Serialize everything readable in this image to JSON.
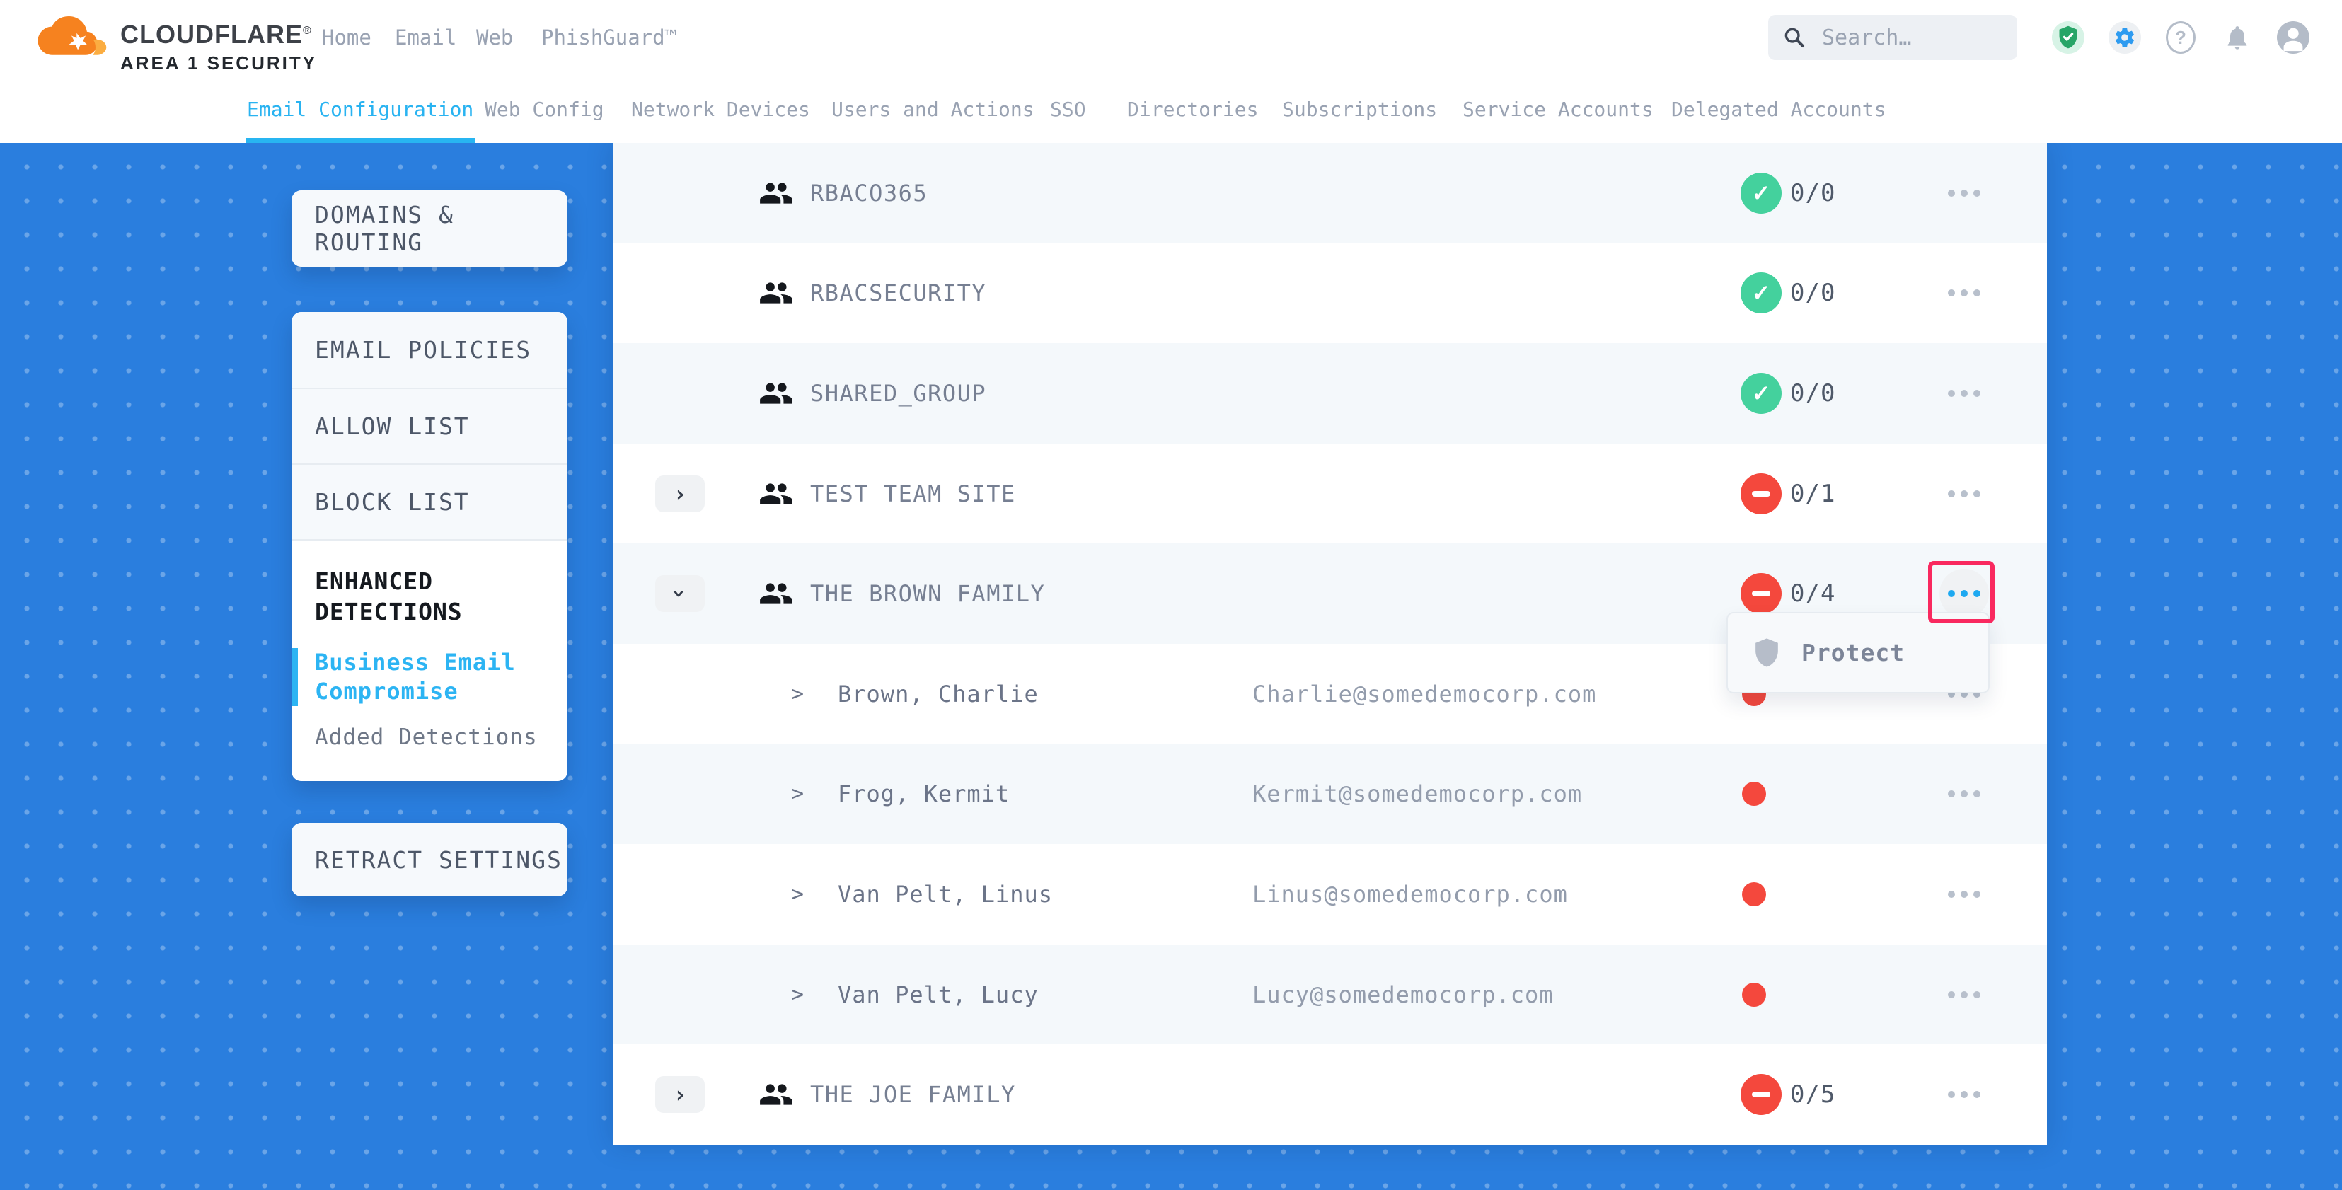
{
  "brand": {
    "name": "CLOUDFLARE",
    "registered_mark": "®",
    "subtitle": "AREA 1 SECURITY"
  },
  "top_nav": {
    "items": [
      "Home",
      "Email",
      "Web",
      "PhishGuard™"
    ]
  },
  "search": {
    "placeholder": "Search…"
  },
  "top_icons": [
    "shield-check-icon",
    "gear-icon",
    "help-icon",
    "bell-icon",
    "avatar-icon"
  ],
  "tabs": [
    {
      "label": "Email Configuration",
      "active": true
    },
    {
      "label": "Web Config",
      "active": false
    },
    {
      "label": "Network Devices",
      "active": false
    },
    {
      "label": "Users and Actions",
      "active": false
    },
    {
      "label": "SSO",
      "active": false
    },
    {
      "label": "Directories",
      "active": false
    },
    {
      "label": "Subscriptions",
      "active": false
    },
    {
      "label": "Service Accounts",
      "active": false
    },
    {
      "label": "Delegated Accounts",
      "active": false
    }
  ],
  "sidebar": {
    "domains_routing": "DOMAINS & ROUTING",
    "email_policies": "EMAIL POLICIES",
    "allow_list": "ALLOW LIST",
    "block_list": "BLOCK LIST",
    "enhanced_detections": "ENHANCED DETECTIONS",
    "business_email_compromise": "Business Email Compromise",
    "added_detections": "Added Detections",
    "retract_settings": "RETRACT SETTINGS"
  },
  "table": {
    "rows": [
      {
        "type": "group",
        "name": "RBACO365",
        "status": "pass",
        "count": "0/0",
        "expandable": false
      },
      {
        "type": "group",
        "name": "RBACSECURITY",
        "status": "pass",
        "count": "0/0",
        "expandable": false
      },
      {
        "type": "group",
        "name": "SHARED_GROUP",
        "status": "pass",
        "count": "0/0",
        "expandable": false
      },
      {
        "type": "group",
        "name": "TEST TEAM SITE",
        "status": "fail",
        "count": "0/1",
        "expandable": true,
        "expanded": false
      },
      {
        "type": "group",
        "name": "THE BROWN FAMILY",
        "status": "fail",
        "count": "0/4",
        "expandable": true,
        "expanded": true,
        "menu_highlighted": true
      },
      {
        "type": "member",
        "name": "Brown, Charlie",
        "email": "Charlie@somedemocorp.com",
        "status": "fail"
      },
      {
        "type": "member",
        "name": "Frog, Kermit",
        "email": "Kermit@somedemocorp.com",
        "status": "fail"
      },
      {
        "type": "member",
        "name": "Van Pelt, Linus",
        "email": "Linus@somedemocorp.com",
        "status": "fail"
      },
      {
        "type": "member",
        "name": "Van Pelt, Lucy",
        "email": "Lucy@somedemocorp.com",
        "status": "fail"
      },
      {
        "type": "group",
        "name": "THE JOE FAMILY",
        "status": "fail",
        "count": "0/5",
        "expandable": true,
        "expanded": false
      }
    ]
  },
  "popup": {
    "label": "Protect",
    "icon": "protect-shield-icon"
  },
  "colors": {
    "background_blue": "#2a7ede",
    "accent_cyan": "#29b3f1",
    "annotation_pink": "#f9295f",
    "status_pass_green": "#44d19d",
    "status_fail_red": "#f4483d",
    "brand_orange": "#f6821f",
    "brand_orange_light": "#fbad41"
  }
}
